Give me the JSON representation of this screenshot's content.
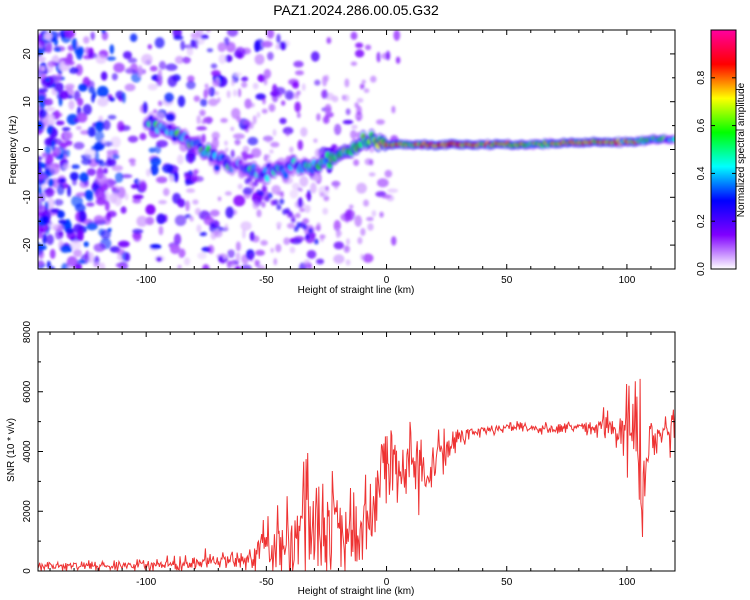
{
  "title": "PAZ1.2024.286.00.05.G32",
  "chart_data": [
    {
      "type": "heatmap",
      "xlabel": "Height of straight line (km)",
      "ylabel": "Frequency (Hz)",
      "xlim": [
        -145,
        120
      ],
      "ylim": [
        -25,
        25
      ],
      "xticks": [
        -100,
        -50,
        0,
        50,
        100
      ],
      "xtick_labels": [
        "-100",
        "-50",
        "0",
        "50",
        "100"
      ],
      "yticks": [
        -20,
        -10,
        0,
        10,
        20
      ],
      "ytick_labels": [
        "-20",
        "-10",
        "0",
        "10",
        "20"
      ],
      "colorbar": {
        "label": "Normalized spectral amplitude",
        "range": [
          0,
          1
        ],
        "ticks": [
          0.0,
          0.2,
          0.4,
          0.6,
          0.8
        ],
        "tick_labels": [
          "0.0",
          "0.2",
          "0.4",
          "0.6",
          "0.8"
        ],
        "colors": [
          "#ffffff",
          "#8000ff",
          "#0000ff",
          "#00ffff",
          "#00ff00",
          "#ffff00",
          "#ff0000",
          "#ff00a0"
        ]
      },
      "ridge": {
        "x": [
          -100,
          -90,
          -80,
          -70,
          -60,
          -50,
          -40,
          -30,
          -20,
          -10,
          -5,
          0,
          10,
          20,
          40,
          60,
          80,
          100,
          110,
          120
        ],
        "y": [
          5,
          4,
          1,
          -2,
          -4,
          -5,
          -3,
          -4,
          -1,
          1,
          2,
          1,
          1,
          1,
          1,
          1,
          1.5,
          1.5,
          2,
          2
        ],
        "amplitude": [
          0.35,
          0.4,
          0.4,
          0.35,
          0.35,
          0.3,
          0.35,
          0.4,
          0.5,
          0.55,
          0.5,
          0.75,
          0.6,
          0.85,
          0.7,
          0.6,
          0.75,
          0.7,
          0.45,
          0.4
        ]
      }
    },
    {
      "type": "line",
      "xlabel": "Height of straight line (km)",
      "ylabel": "SNR (10 * v/v)",
      "xlim": [
        -145,
        120
      ],
      "ylim": [
        0,
        8000
      ],
      "xticks": [
        -100,
        -50,
        0,
        50,
        100
      ],
      "xtick_labels": [
        "-100",
        "-50",
        "0",
        "50",
        "100"
      ],
      "yticks": [
        0,
        2000,
        4000,
        6000,
        8000
      ],
      "ytick_labels": [
        "0",
        "2000",
        "4000",
        "6000",
        "8000"
      ],
      "color": "#ee3333",
      "trend": {
        "x": [
          -145,
          -120,
          -100,
          -80,
          -60,
          -50,
          -40,
          -30,
          -20,
          -10,
          -5,
          0,
          5,
          10,
          15,
          20,
          30,
          40,
          50,
          60,
          70,
          80,
          90,
          95,
          100,
          103,
          107,
          110,
          115,
          120
        ],
        "y": [
          150,
          160,
          200,
          250,
          400,
          700,
          1000,
          1400,
          1600,
          1500,
          2000,
          3500,
          3300,
          3600,
          3300,
          3800,
          4400,
          4700,
          4800,
          4800,
          4750,
          4800,
          4850,
          4800,
          4300,
          6000,
          2500,
          4500,
          4700,
          4700
        ]
      },
      "noise": {
        "x": [
          -145,
          -100,
          -60,
          -50,
          -40,
          -30,
          -20,
          -10,
          0,
          10,
          20,
          30,
          40,
          60,
          80,
          90,
          100,
          105,
          110,
          120
        ],
        "amplitude": [
          80,
          100,
          150,
          500,
          900,
          1000,
          900,
          900,
          800,
          700,
          500,
          200,
          100,
          80,
          100,
          250,
          700,
          1200,
          500,
          400
        ]
      }
    }
  ]
}
